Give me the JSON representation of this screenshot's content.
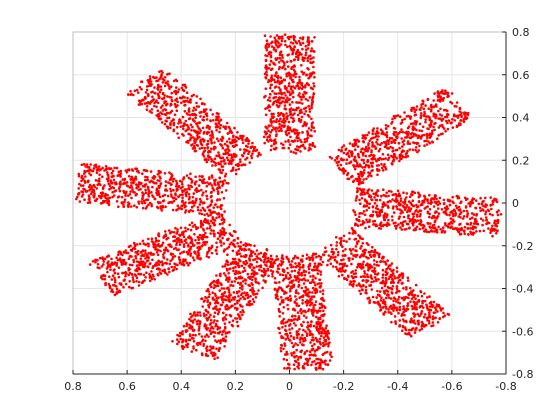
{
  "chart_data": {
    "type": "scatter",
    "title": "",
    "xlabel": "",
    "ylabel": "",
    "x_direction": "reverse",
    "y_axis_location": "right",
    "xlim": [
      -0.8,
      0.8
    ],
    "ylim": [
      -0.8,
      0.8
    ],
    "grid": true,
    "x_ticks": [
      {
        "value": 0.8,
        "label": "0.8"
      },
      {
        "value": 0.6,
        "label": "0.6"
      },
      {
        "value": 0.4,
        "label": "0.4"
      },
      {
        "value": 0.2,
        "label": "0.2"
      },
      {
        "value": 0,
        "label": "0"
      },
      {
        "value": -0.2,
        "label": "-0.2"
      },
      {
        "value": -0.4,
        "label": "-0.4"
      },
      {
        "value": -0.6,
        "label": "-0.6"
      },
      {
        "value": -0.8,
        "label": "-0.8"
      }
    ],
    "y_ticks": [
      {
        "value": 0.8,
        "label": "0.8"
      },
      {
        "value": 0.6,
        "label": "0.6"
      },
      {
        "value": 0.4,
        "label": "0.4"
      },
      {
        "value": 0.2,
        "label": "0.2"
      },
      {
        "value": 0,
        "label": "0"
      },
      {
        "value": -0.2,
        "label": "-0.2"
      },
      {
        "value": -0.4,
        "label": "-0.4"
      },
      {
        "value": -0.6,
        "label": "-0.6"
      },
      {
        "value": -0.8,
        "label": "-0.8"
      }
    ],
    "series": [
      {
        "color": "#ff0000",
        "marker": "dot",
        "pattern": "radial-spokes",
        "spoke_count": 9,
        "inner_radius": 0.24,
        "outer_radius": 0.78,
        "spoke_half_width": 0.095,
        "spoke_angles_deg": [
          90,
          47,
          7,
          -27,
          -63,
          -95,
          -132,
          -175,
          143
        ]
      }
    ]
  }
}
